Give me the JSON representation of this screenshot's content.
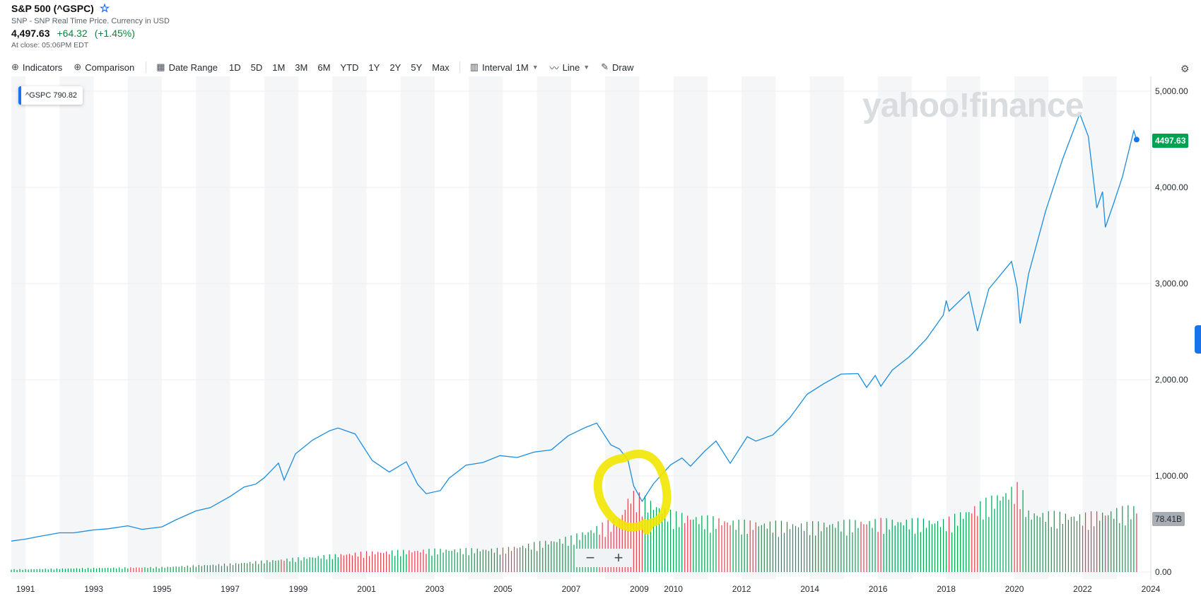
{
  "header": {
    "title": "S&P 500 (^GSPC)",
    "subtitle": "SNP - SNP Real Time Price. Currency in USD",
    "price": "4,497.63",
    "change": "+64.32",
    "change_pct": "(+1.45%)",
    "close_time": "At close: 05:06PM EDT"
  },
  "toolbar": {
    "indicators": "Indicators",
    "comparison": "Comparison",
    "date_range": "Date Range",
    "ranges": [
      "1D",
      "5D",
      "1M",
      "3M",
      "6M",
      "YTD",
      "1Y",
      "2Y",
      "5Y",
      "Max"
    ],
    "interval_label": "Interval",
    "interval_value": "1M",
    "chart_type": "Line",
    "draw": "Draw",
    "settings_icon": "gear-icon"
  },
  "tooltip": {
    "symbol": "^GSPC",
    "value": "790.82"
  },
  "last_price_label": "4497.63",
  "volume_label": "78.41B",
  "watermark": "yahoo!finance",
  "zoom": {
    "minus": "−",
    "plus": "+"
  },
  "colors": {
    "line": "#1a8de0",
    "up": "#00a251",
    "down": "#e0404d",
    "accent": "#1a73e8",
    "highlight": "#f2e600"
  },
  "chart_data": {
    "type": "line",
    "title": "S&P 500 (^GSPC)",
    "interval": "1M",
    "x_tick_labels": [
      "1991",
      "1993",
      "1995",
      "1997",
      "1999",
      "2001",
      "2003",
      "2005",
      "2007",
      "2009",
      "2010",
      "2012",
      "2014",
      "2016",
      "2018",
      "2020",
      "2022",
      "2024"
    ],
    "y_tick_labels": [
      "5,000.00",
      "4,000.00",
      "3,000.00",
      "2,000.00",
      "1,000.00",
      "0.00"
    ],
    "ylim": [
      0,
      5000
    ],
    "xlim": [
      "1990-08",
      "2024-01"
    ],
    "series": [
      {
        "name": "^GSPC",
        "x": [
          "1990-08",
          "1991-01",
          "1991-06",
          "1992-01",
          "1992-06",
          "1993-01",
          "1993-06",
          "1994-01",
          "1994-06",
          "1995-01",
          "1995-06",
          "1996-01",
          "1996-06",
          "1997-01",
          "1997-06",
          "1997-10",
          "1998-01",
          "1998-06",
          "1998-08",
          "1998-12",
          "1999-06",
          "1999-12",
          "2000-03",
          "2000-09",
          "2001-03",
          "2001-09",
          "2002-03",
          "2002-07",
          "2002-10",
          "2003-03",
          "2003-06",
          "2003-12",
          "2004-06",
          "2004-12",
          "2005-06",
          "2005-12",
          "2006-06",
          "2006-12",
          "2007-06",
          "2007-10",
          "2008-03",
          "2008-06",
          "2008-09",
          "2008-11",
          "2009-02",
          "2009-06",
          "2009-12",
          "2010-04",
          "2010-07",
          "2010-12",
          "2011-04",
          "2011-09",
          "2012-03",
          "2012-06",
          "2012-12",
          "2013-06",
          "2013-12",
          "2014-06",
          "2014-12",
          "2015-06",
          "2015-09",
          "2015-12",
          "2016-02",
          "2016-06",
          "2016-12",
          "2017-06",
          "2017-12",
          "2018-01",
          "2018-02",
          "2018-09",
          "2018-12",
          "2019-04",
          "2019-12",
          "2020-02",
          "2020-03",
          "2020-06",
          "2020-12",
          "2021-06",
          "2021-12",
          "2022-03",
          "2022-06",
          "2022-08",
          "2022-09",
          "2022-12",
          "2023-03",
          "2023-07",
          "2023-08"
        ],
        "y": [
          322,
          343,
          371,
          408,
          408,
          438,
          450,
          481,
          444,
          470,
          544,
          636,
          670,
          786,
          885,
          914,
          980,
          1133,
          957,
          1229,
          1372,
          1469,
          1498,
          1436,
          1160,
          1040,
          1147,
          911,
          815,
          848,
          974,
          1111,
          1140,
          1211,
          1191,
          1248,
          1270,
          1418,
          1503,
          1549,
          1322,
          1280,
          1166,
          896,
          735,
          919,
          1115,
          1186,
          1101,
          1257,
          1363,
          1131,
          1408,
          1362,
          1426,
          1606,
          1848,
          1960,
          2059,
          2063,
          1920,
          2044,
          1932,
          2099,
          2239,
          2423,
          2673,
          2823,
          2713,
          2913,
          2506,
          2945,
          3230,
          2954,
          2584,
          3100,
          3756,
          4297,
          4766,
          4530,
          3785,
          3955,
          3585,
          3839,
          4109,
          4588,
          4497
        ]
      }
    ],
    "volume_series": {
      "name": "Volume",
      "last_value_label": "78.41B",
      "x": [
        "1991",
        "1993",
        "1995",
        "1997",
        "1999",
        "2001",
        "2003",
        "2005",
        "2007",
        "2008-06",
        "2008-10",
        "2009-03",
        "2010",
        "2012",
        "2014",
        "2016",
        "2018",
        "2020-03",
        "2020-06",
        "2022",
        "2023-08"
      ],
      "y_billions": [
        3.5,
        5,
        6,
        10,
        17,
        24,
        27,
        28,
        42,
        65,
        96,
        88,
        70,
        60,
        58,
        62,
        62,
        105,
        72,
        68,
        78.41
      ]
    }
  }
}
